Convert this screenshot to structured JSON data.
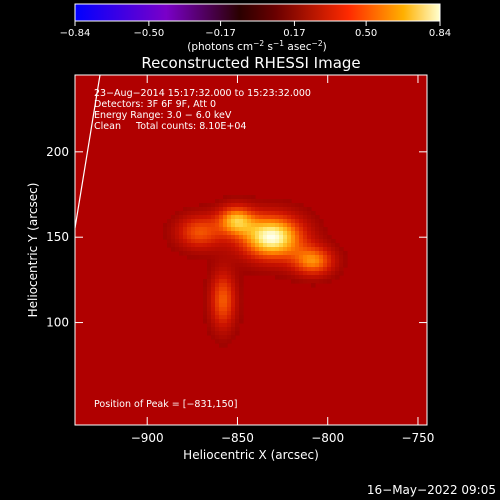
{
  "chart_data": {
    "type": "heatmap",
    "title": "Reconstructed RHESSI Image",
    "xlabel": "Heliocentric X (arcsec)",
    "ylabel": "Heliocentric Y (arcsec)",
    "xlim": [
      -940,
      -745
    ],
    "ylim": [
      40,
      245
    ],
    "x_ticks": [
      -900,
      -850,
      -800,
      -750
    ],
    "y_ticks": [
      100,
      150,
      200
    ],
    "x_tick_labels": [
      "−900",
      "−850",
      "−800",
      "−750"
    ],
    "y_tick_labels": [
      "100",
      "150",
      "200"
    ],
    "colorbar": {
      "range": [
        -0.84,
        0.84
      ],
      "ticks": [
        -0.84,
        -0.5,
        -0.17,
        0.17,
        0.5,
        0.84
      ],
      "tick_labels": [
        "−0.84",
        "−0.50",
        "−0.17",
        "0.17",
        "0.50",
        "0.84"
      ],
      "unit_label_parts": [
        "(photons cm",
        "−2",
        " s",
        "−1",
        " asec",
        "−2",
        ")"
      ]
    },
    "sources": [
      {
        "x": -831,
        "y": 150,
        "sigma_x": 12,
        "sigma_y": 9,
        "amplitude": 0.84
      },
      {
        "x": -851,
        "y": 160,
        "sigma_x": 7,
        "sigma_y": 6,
        "amplitude": 0.55
      },
      {
        "x": -808,
        "y": 136,
        "sigma_x": 8,
        "sigma_y": 6,
        "amplitude": 0.5
      },
      {
        "x": -871,
        "y": 153,
        "sigma_x": 9,
        "sigma_y": 7,
        "amplitude": 0.4
      },
      {
        "x": -858,
        "y": 113,
        "sigma_x": 5,
        "sigma_y": 12,
        "amplitude": 0.42
      }
    ],
    "annotations": [
      "23−Aug−2014 15:17:32.000 to 15:23:32.000",
      "Detectors: 3F 6F 9F, Att 0",
      "Energy Range: 3.0 − 6.0 keV",
      "Clean     Total counts: 8.10E+04"
    ],
    "peak_label": "Position of Peak = [−831,150]",
    "peak": [
      -831,
      150
    ]
  },
  "footer": {
    "timestamp": "16−May−2022 09:05"
  }
}
